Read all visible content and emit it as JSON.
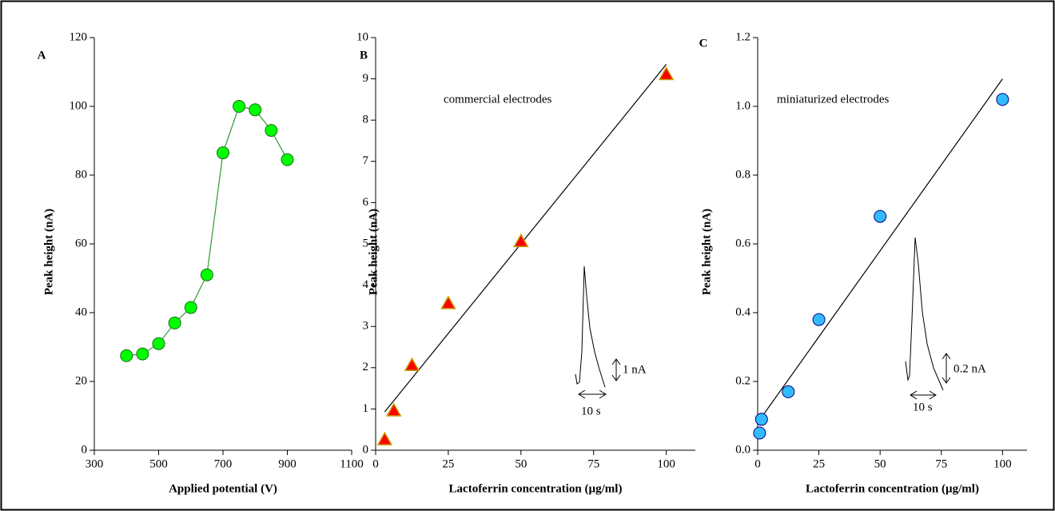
{
  "chart_data": [
    {
      "type": "line",
      "label": "A",
      "xlabel": "Applied potential (V)",
      "ylabel": "Peak height (nA)",
      "x": [
        400,
        450,
        500,
        550,
        600,
        650,
        700,
        750,
        800,
        850,
        900
      ],
      "series": [
        {
          "color": "#00ff00",
          "line_color": "#2e9a2e",
          "marker": "circle",
          "values": [
            27.5,
            28,
            31,
            37,
            41.5,
            51,
            86.5,
            100,
            99,
            93,
            84.5
          ]
        }
      ],
      "xlim": [
        300,
        1100
      ],
      "xticks": [
        300,
        500,
        700,
        900,
        1100
      ],
      "ylim": [
        0,
        120
      ],
      "yticks": [
        0,
        20,
        40,
        60,
        80,
        100,
        120
      ]
    },
    {
      "type": "scatter",
      "label": "B",
      "xlabel": "Lactoferrin concentration (µg/ml)",
      "ylabel": "Peak height (nA)",
      "x": [
        3.125,
        6.25,
        12.5,
        25,
        50,
        100
      ],
      "series": [
        {
          "color": "#ff0000",
          "edge_color": "#c8a000",
          "marker": "triangle",
          "values": [
            0.25,
            0.95,
            2.05,
            3.55,
            5.05,
            9.1
          ]
        }
      ],
      "fit_line": {
        "x": [
          3.125,
          100
        ],
        "values": [
          0.93,
          9.35
        ]
      },
      "annotations": [
        "commercial electrodes",
        "1 nA",
        "10 s"
      ],
      "xlim": [
        0,
        110
      ],
      "xticks": [
        0,
        25,
        50,
        75,
        100
      ],
      "ylim": [
        0,
        10
      ],
      "yticks": [
        0,
        1,
        2,
        3,
        4,
        5,
        6,
        7,
        8,
        9,
        10
      ]
    },
    {
      "type": "scatter",
      "label": "C",
      "xlabel": "Lactoferrin concentration (µg/ml)",
      "ylabel": "Peak height (nA)",
      "x": [
        0.78,
        1.56,
        12.5,
        25,
        50,
        100
      ],
      "series": [
        {
          "color": "#33bbff",
          "edge_color": "#000080",
          "marker": "circle",
          "values": [
            0.05,
            0.09,
            0.17,
            0.38,
            0.68,
            1.02
          ]
        }
      ],
      "fit_line": {
        "x": [
          1,
          100
        ],
        "values": [
          0.09,
          1.08
        ]
      },
      "annotations": [
        "miniaturized electrodes",
        "0.2 nA",
        "10 s"
      ],
      "xlim": [
        0,
        110
      ],
      "xticks": [
        0,
        25,
        50,
        75,
        100
      ],
      "ylim": [
        0,
        1.2
      ],
      "yticks": [
        {
          "value": 0,
          "label": "0.0"
        },
        {
          "value": 0.2,
          "label": "0.2"
        },
        {
          "value": 0.4,
          "label": "0.4"
        },
        {
          "value": 0.6,
          "label": "0.6"
        },
        {
          "value": 0.8,
          "label": "0.8"
        },
        {
          "value": 1,
          "label": "1.0"
        },
        {
          "value": 1.2,
          "label": "1.2"
        }
      ]
    }
  ]
}
